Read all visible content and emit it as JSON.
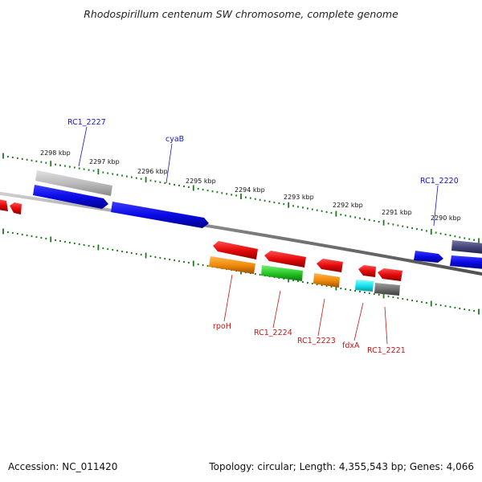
{
  "title": "Rhodospirillum centenum SW chromosome, complete genome",
  "footer": {
    "accession": "Accession: NC_011420",
    "topology": "Topology: circular; Length: 4,355,543 bp; Genes: 4,066"
  },
  "ruler": {
    "labels": [
      "2298 kbp",
      "2297 kbp",
      "2296 kbp",
      "2295 kbp",
      "2294 kbp",
      "2293 kbp",
      "2292 kbp",
      "2291 kbp",
      "2290 kbp"
    ]
  },
  "top_labels": [
    "RC1_2227",
    "cyaB",
    "RC1_2220"
  ],
  "bottom_labels": [
    "rpoH",
    "RC1_2224",
    "RC1_2223",
    "fdxA",
    "RC1_2221"
  ],
  "colors": {
    "blue_gene": "#0a0ae6",
    "gray_gene": "#bcbcbc",
    "red_gene": "#e60a0a",
    "orange_gene": "#f08c0a",
    "green_gene": "#28c828",
    "cyan_gene": "#14e6f0",
    "dark_gray_gene": "#6e6e6e",
    "navy_gene": "#46467a",
    "tick_green": "#1e7a1e",
    "blue_label": "#1414c8",
    "red_label": "#c81414"
  }
}
